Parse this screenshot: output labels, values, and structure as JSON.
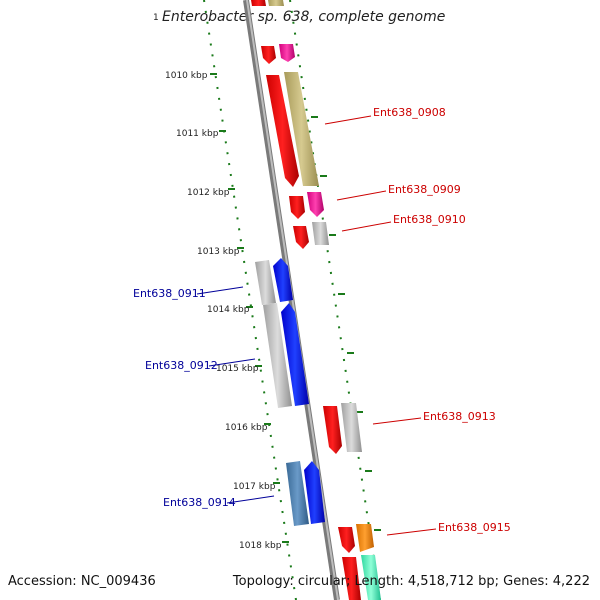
{
  "title": "Enterobacter sp. 638, complete genome",
  "footer": {
    "accession": "Accession: NC_009436",
    "topology": "Topology: circular; Length: 4,518,712 bp; Genes: 4,222"
  },
  "colors": {
    "backbone": "#888888",
    "forward_label": "#cc0000",
    "reverse_label": "#000099",
    "ticks": "#1a7a1a"
  },
  "kbp_ticks": [
    {
      "label": "1010 kbp",
      "value": 1010
    },
    {
      "label": "1011 kbp",
      "value": 1011
    },
    {
      "label": "1012 kbp",
      "value": 1012
    },
    {
      "label": "1013 kbp",
      "value": 1013
    },
    {
      "label": "1014 kbp",
      "value": 1014
    },
    {
      "label": "1015 kbp",
      "value": 1015
    },
    {
      "label": "1016 kbp",
      "value": 1016
    },
    {
      "label": "1017 kbp",
      "value": 1017
    },
    {
      "label": "1018 kbp",
      "value": 1018
    }
  ],
  "gene_labels": [
    {
      "name": "Ent638_0908",
      "strand": "forward"
    },
    {
      "name": "Ent638_0909",
      "strand": "forward"
    },
    {
      "name": "Ent638_0910",
      "strand": "forward"
    },
    {
      "name": "Ent638_0911",
      "strand": "reverse"
    },
    {
      "name": "Ent638_0912",
      "strand": "reverse"
    },
    {
      "name": "Ent638_0913",
      "strand": "forward"
    },
    {
      "name": "Ent638_0914",
      "strand": "reverse"
    },
    {
      "name": "Ent638_0915",
      "strand": "forward"
    }
  ]
}
